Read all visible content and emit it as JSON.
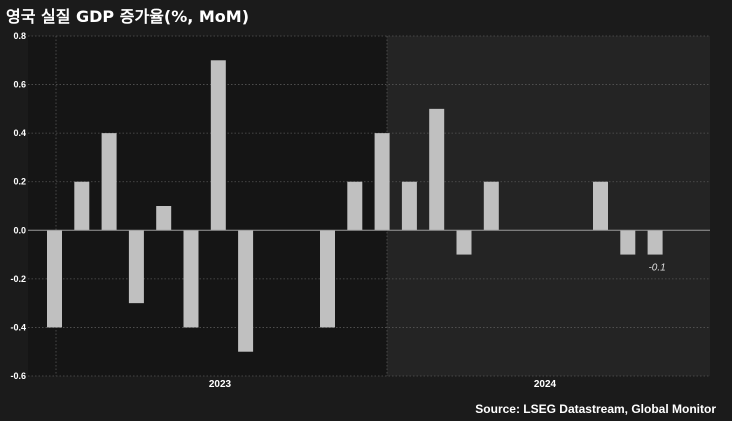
{
  "title": "영국 실질 GDP 증가율(%, MoM)",
  "source": "Source: LSEG Datastream, Global Monitor",
  "colors": {
    "background": "#1b1b1b",
    "plot_2023": "#151515",
    "plot_2024": "#242424",
    "bar": "#c0c0c0",
    "zero_line": "#9a9a9a",
    "grid": "#555555"
  },
  "chart_data": {
    "type": "bar",
    "categories": [
      "2023-01",
      "2023-02",
      "2023-03",
      "2023-04",
      "2023-05",
      "2023-06",
      "2023-07",
      "2023-08",
      "2023-09",
      "2023-10",
      "2023-11",
      "2023-12",
      "2024-01",
      "2024-02",
      "2024-03",
      "2024-04",
      "2024-05",
      "2024-06",
      "2024-07",
      "2024-08",
      "2024-09",
      "2024-10",
      "2024-11",
      "2024-12"
    ],
    "values": [
      -0.4,
      0.2,
      0.4,
      -0.3,
      0.1,
      -0.4,
      0.7,
      -0.5,
      0.0,
      0.0,
      -0.4,
      0.2,
      0.4,
      0.2,
      0.5,
      -0.1,
      0.2,
      0.0,
      0.0,
      0.0,
      0.2,
      -0.1,
      -0.1,
      null
    ],
    "ylim": [
      -0.6,
      0.8
    ],
    "yticks": [
      "-0.6",
      "-0.4",
      "-0.2",
      "0.0",
      "0.2",
      "0.4",
      "0.6",
      "0.8"
    ],
    "year_labels": [
      "2023",
      "2024"
    ],
    "data_labels": [
      {
        "index": 22,
        "text": "-0.1"
      }
    ],
    "grid": true
  }
}
